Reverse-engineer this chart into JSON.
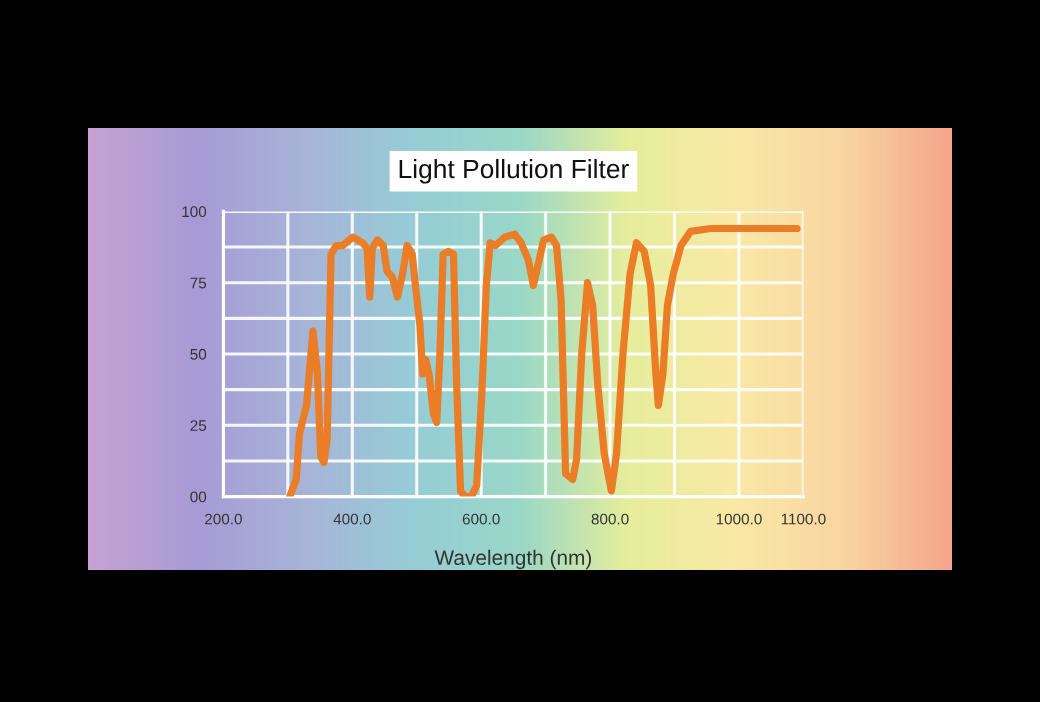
{
  "chart_data": {
    "type": "line",
    "title": "Light Pollution Filter",
    "xlabel": "Wavelength (nm)",
    "x": [
      303,
      313,
      318,
      329,
      339,
      346,
      351,
      356,
      361,
      367,
      375,
      385,
      401,
      416,
      423,
      427,
      431,
      439,
      448,
      454,
      462,
      470,
      478,
      485,
      493,
      498,
      505,
      509,
      514,
      519,
      526,
      531,
      536,
      541,
      549,
      557,
      562,
      568,
      575,
      585,
      593,
      601,
      608,
      614,
      622,
      637,
      652,
      662,
      673,
      681,
      689,
      697,
      709,
      717,
      724,
      731,
      742,
      748,
      756,
      765,
      773,
      781,
      791,
      802,
      810,
      820,
      831,
      841,
      853,
      863,
      871,
      875,
      882,
      889,
      898,
      910,
      925,
      956,
      1008,
      1090
    ],
    "series": [
      {
        "color": "#ea7d26",
        "values": [
          0,
          6,
          22,
          32,
          58,
          43,
          14,
          12,
          20,
          85,
          88,
          88,
          91,
          89,
          87,
          70,
          87,
          90,
          88,
          79,
          77,
          70,
          78,
          88,
          85,
          74,
          60,
          43,
          48,
          43,
          29,
          26,
          50,
          85,
          86,
          85,
          39,
          2,
          0,
          0,
          4,
          36,
          74,
          89,
          88,
          91,
          92,
          89,
          83,
          74,
          82,
          90,
          91,
          88,
          69,
          8,
          6,
          13,
          50,
          75,
          67,
          39,
          15,
          2,
          15,
          50,
          78,
          89,
          86,
          74,
          43,
          32,
          43,
          67,
          78,
          88,
          93,
          94,
          94,
          94
        ]
      }
    ],
    "xlim": [
      200,
      1100
    ],
    "xticks": [
      {
        "value": 200,
        "label": "200.0"
      },
      {
        "value": 300,
        "label": null
      },
      {
        "value": 400,
        "label": "400.0"
      },
      {
        "value": 500,
        "label": null
      },
      {
        "value": 600,
        "label": "600.0"
      },
      {
        "value": 700,
        "label": null
      },
      {
        "value": 800,
        "label": "800.0"
      },
      {
        "value": 900,
        "label": null
      },
      {
        "value": 1000,
        "label": "1000.0"
      },
      {
        "value": 1100,
        "label": "1100.0"
      }
    ],
    "ylim": [
      0,
      100
    ],
    "yticks": [
      {
        "value": 0,
        "label": "00"
      },
      {
        "value": 12.5,
        "label": null
      },
      25,
      {
        "value": 37.5,
        "label": null
      },
      50,
      {
        "value": 62.5,
        "label": null
      },
      75,
      {
        "value": 87.5,
        "label": null
      },
      100
    ],
    "grid": true,
    "line_style": "solid",
    "marker": "none"
  }
}
